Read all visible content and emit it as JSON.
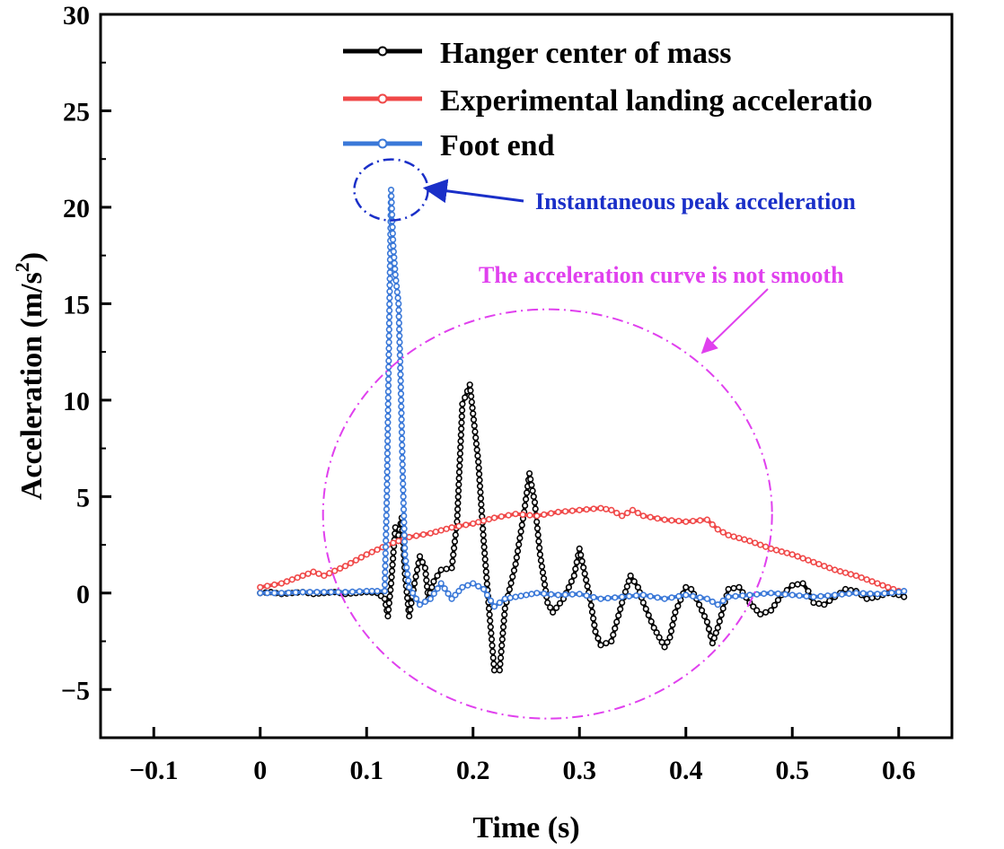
{
  "chart_data": {
    "type": "line",
    "xlabel": "Time (s)",
    "ylabel_main": "Acceleration (m/s",
    "ylabel_sup": "2",
    "ylabel_end": ")",
    "xlim": [
      -0.15,
      0.65
    ],
    "ylim": [
      -7.5,
      30
    ],
    "xticks": [
      -0.1,
      0,
      0.1,
      0.2,
      0.3,
      0.4,
      0.5,
      0.6
    ],
    "xtick_labels": [
      "−0.1",
      "0",
      "0.1",
      "0.2",
      "0.3",
      "0.4",
      "0.5",
      "0.6"
    ],
    "yticks": [
      -5,
      0,
      5,
      10,
      15,
      20,
      25,
      30
    ],
    "ytick_labels": [
      "−5",
      "0",
      "5",
      "10",
      "15",
      "20",
      "25",
      "30"
    ],
    "legend_position": "top-center",
    "series": [
      {
        "name": "Hanger center of mass",
        "color": "#000000",
        "points": [
          [
            0,
            0
          ],
          [
            0.01,
            0.05
          ],
          [
            0.02,
            -0.05
          ],
          [
            0.03,
            0
          ],
          [
            0.04,
            0.05
          ],
          [
            0.05,
            -0.05
          ],
          [
            0.06,
            0
          ],
          [
            0.07,
            0.05
          ],
          [
            0.08,
            -0.05
          ],
          [
            0.09,
            0
          ],
          [
            0.1,
            0.05
          ],
          [
            0.11,
            0
          ],
          [
            0.117,
            -0.3
          ],
          [
            0.12,
            -1.2
          ],
          [
            0.123,
            0.5
          ],
          [
            0.127,
            3.4
          ],
          [
            0.13,
            3.0
          ],
          [
            0.133,
            3.9
          ],
          [
            0.136,
            1.0
          ],
          [
            0.14,
            -1.2
          ],
          [
            0.145,
            0.5
          ],
          [
            0.15,
            1.9
          ],
          [
            0.155,
            1.3
          ],
          [
            0.158,
            -0.3
          ],
          [
            0.163,
            0.6
          ],
          [
            0.17,
            1.2
          ],
          [
            0.18,
            1.3
          ],
          [
            0.185,
            3.7
          ],
          [
            0.19,
            9.8
          ],
          [
            0.197,
            10.8
          ],
          [
            0.2,
            9.3
          ],
          [
            0.205,
            6.8
          ],
          [
            0.21,
            2.7
          ],
          [
            0.215,
            -0.8
          ],
          [
            0.22,
            -4.0
          ],
          [
            0.225,
            -4.0
          ],
          [
            0.23,
            -0.8
          ],
          [
            0.24,
            1.5
          ],
          [
            0.248,
            4.2
          ],
          [
            0.253,
            6.2
          ],
          [
            0.258,
            4.7
          ],
          [
            0.263,
            2.0
          ],
          [
            0.27,
            -0.5
          ],
          [
            0.275,
            -1.0
          ],
          [
            0.285,
            -0.3
          ],
          [
            0.295,
            0.9
          ],
          [
            0.3,
            2.3
          ],
          [
            0.305,
            1.0
          ],
          [
            0.31,
            -0.3
          ],
          [
            0.315,
            -2.0
          ],
          [
            0.32,
            -2.7
          ],
          [
            0.33,
            -2.5
          ],
          [
            0.34,
            -0.5
          ],
          [
            0.348,
            0.9
          ],
          [
            0.355,
            0.3
          ],
          [
            0.36,
            -0.5
          ],
          [
            0.37,
            -1.8
          ],
          [
            0.38,
            -2.8
          ],
          [
            0.385,
            -2.3
          ],
          [
            0.39,
            -1.0
          ],
          [
            0.4,
            0.3
          ],
          [
            0.405,
            0.2
          ],
          [
            0.41,
            -0.3
          ],
          [
            0.42,
            -1.5
          ],
          [
            0.425,
            -2.6
          ],
          [
            0.43,
            -1.8
          ],
          [
            0.435,
            -0.8
          ],
          [
            0.44,
            0.2
          ],
          [
            0.45,
            0.3
          ],
          [
            0.46,
            -0.5
          ],
          [
            0.47,
            -1.1
          ],
          [
            0.48,
            -0.9
          ],
          [
            0.49,
            -0.1
          ],
          [
            0.5,
            0.4
          ],
          [
            0.51,
            0.5
          ],
          [
            0.515,
            0.1
          ],
          [
            0.52,
            -0.5
          ],
          [
            0.53,
            -0.6
          ],
          [
            0.54,
            -0.2
          ],
          [
            0.55,
            0.2
          ],
          [
            0.56,
            0.1
          ],
          [
            0.57,
            -0.3
          ],
          [
            0.58,
            -0.2
          ],
          [
            0.59,
            0
          ],
          [
            0.6,
            -0.1
          ],
          [
            0.605,
            -0.2
          ]
        ]
      },
      {
        "name": "Experimental landing acceleratio",
        "color": "#f04848",
        "points": [
          [
            0,
            0.3
          ],
          [
            0.02,
            0.5
          ],
          [
            0.04,
            0.9
          ],
          [
            0.05,
            1.1
          ],
          [
            0.06,
            0.9
          ],
          [
            0.08,
            1.4
          ],
          [
            0.1,
            2.0
          ],
          [
            0.12,
            2.5
          ],
          [
            0.14,
            2.9
          ],
          [
            0.16,
            3.1
          ],
          [
            0.18,
            3.4
          ],
          [
            0.2,
            3.6
          ],
          [
            0.22,
            3.9
          ],
          [
            0.24,
            4.1
          ],
          [
            0.26,
            4.0
          ],
          [
            0.28,
            4.2
          ],
          [
            0.3,
            4.3
          ],
          [
            0.32,
            4.4
          ],
          [
            0.33,
            4.3
          ],
          [
            0.34,
            4.0
          ],
          [
            0.35,
            4.3
          ],
          [
            0.36,
            4.0
          ],
          [
            0.38,
            3.8
          ],
          [
            0.4,
            3.7
          ],
          [
            0.42,
            3.8
          ],
          [
            0.43,
            3.3
          ],
          [
            0.44,
            3.0
          ],
          [
            0.46,
            2.7
          ],
          [
            0.48,
            2.3
          ],
          [
            0.5,
            2.0
          ],
          [
            0.52,
            1.6
          ],
          [
            0.54,
            1.2
          ],
          [
            0.56,
            0.9
          ],
          [
            0.58,
            0.5
          ],
          [
            0.6,
            0.1
          ]
        ]
      },
      {
        "name": "Foot end",
        "color": "#3a78d8",
        "points": [
          [
            0,
            0
          ],
          [
            0.02,
            0
          ],
          [
            0.04,
            0.05
          ],
          [
            0.06,
            0.05
          ],
          [
            0.08,
            0.05
          ],
          [
            0.1,
            0.1
          ],
          [
            0.11,
            0.1
          ],
          [
            0.117,
            0.1
          ],
          [
            0.119,
            5.0
          ],
          [
            0.121,
            13.0
          ],
          [
            0.123,
            20.9
          ],
          [
            0.125,
            18.0
          ],
          [
            0.127,
            16.5
          ],
          [
            0.13,
            15.0
          ],
          [
            0.132,
            11.0
          ],
          [
            0.134,
            6.0
          ],
          [
            0.136,
            2.0
          ],
          [
            0.14,
            0.3
          ],
          [
            0.15,
            -0.6
          ],
          [
            0.16,
            -0.3
          ],
          [
            0.17,
            0.5
          ],
          [
            0.18,
            -0.3
          ],
          [
            0.19,
            0.3
          ],
          [
            0.2,
            0.5
          ],
          [
            0.21,
            0.2
          ],
          [
            0.22,
            -0.7
          ],
          [
            0.23,
            -0.3
          ],
          [
            0.24,
            -0.2
          ],
          [
            0.25,
            -0.1
          ],
          [
            0.26,
            0
          ],
          [
            0.28,
            -0.1
          ],
          [
            0.3,
            -0.05
          ],
          [
            0.32,
            -0.3
          ],
          [
            0.34,
            -0.2
          ],
          [
            0.36,
            -0.1
          ],
          [
            0.38,
            -0.3
          ],
          [
            0.4,
            -0.1
          ],
          [
            0.42,
            -0.3
          ],
          [
            0.43,
            -0.6
          ],
          [
            0.44,
            -0.2
          ],
          [
            0.46,
            -0.1
          ],
          [
            0.48,
            0
          ],
          [
            0.5,
            -0.1
          ],
          [
            0.52,
            -0.2
          ],
          [
            0.54,
            -0.1
          ],
          [
            0.56,
            0
          ],
          [
            0.58,
            -0.05
          ],
          [
            0.6,
            0.05
          ],
          [
            0.605,
            0.1
          ]
        ]
      }
    ],
    "annotations": {
      "peak_label": "Instantaneous peak acceleration",
      "peak_color": "#1a2fc8",
      "peak_point": [
        0.123,
        20.9
      ],
      "smooth_label": "The acceleration curve is not smooth",
      "smooth_color": "#e040ee",
      "smooth_center": [
        0.27,
        4.1
      ]
    }
  }
}
